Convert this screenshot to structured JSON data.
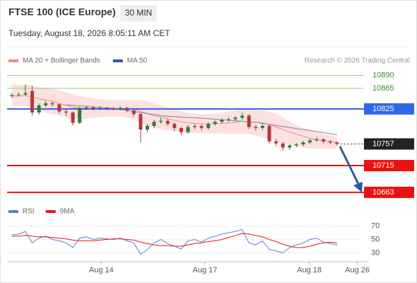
{
  "header": {
    "title": "FTSE 100 (ICE Europe)",
    "interval": "30 MIN",
    "datetime": "Tuesday, August 18, 2026 8:05:11 AM CET"
  },
  "chart_data": [
    {
      "type": "candlestick",
      "attribution": "Research © 2026 Trading Central",
      "xlim": [
        -0.5,
        52.5
      ],
      "ylim": [
        10645,
        10906
      ],
      "xticks": [
        {
          "value": 13.2,
          "label": "Aug 14"
        },
        {
          "value": 28.5,
          "label": "Aug 17"
        },
        {
          "value": 43.9,
          "label": "Aug 18"
        },
        {
          "value": 51,
          "label": "Aug 26"
        }
      ],
      "up_color": "#2f7d32",
      "down_color": "#b23a3a",
      "open": [
        10850,
        10852,
        10853,
        10860,
        10818,
        10832,
        10836,
        10834,
        10820,
        10818,
        10798,
        10826,
        10828,
        10826,
        10827,
        10826,
        10825,
        10827,
        10822,
        10815,
        10785,
        10792,
        10800,
        10802,
        10796,
        10788,
        10780,
        10790,
        10792,
        10788,
        10796,
        10800,
        10804,
        10805,
        10808,
        10812,
        10790,
        10788,
        10792,
        10762,
        10758,
        10750,
        10754,
        10756,
        10760,
        10764,
        10766,
        10762,
        10760
      ],
      "high": [
        10856,
        10857,
        10872,
        10870,
        10836,
        10840,
        10839,
        10836,
        10824,
        10820,
        10829,
        10831,
        10830,
        10830,
        10829,
        10829,
        10830,
        10829,
        10824,
        10817,
        10796,
        10804,
        10808,
        10805,
        10799,
        10790,
        10794,
        10796,
        10795,
        10799,
        10803,
        10807,
        10809,
        10811,
        10818,
        10815,
        10794,
        10797,
        10794,
        10766,
        10761,
        10757,
        10759,
        10763,
        10767,
        10770,
        10768,
        10765,
        10762
      ],
      "low": [
        10847,
        10849,
        10850,
        10812,
        10814,
        10829,
        10830,
        10816,
        10812,
        10793,
        10796,
        10823,
        10822,
        10823,
        10822,
        10822,
        10822,
        10818,
        10810,
        10760,
        10780,
        10788,
        10796,
        10792,
        10782,
        10774,
        10777,
        10786,
        10784,
        10785,
        10793,
        10797,
        10800,
        10801,
        10804,
        10786,
        10783,
        10784,
        10757,
        10752,
        10744,
        10746,
        10750,
        10752,
        10757,
        10761,
        10758,
        10756,
        10754
      ],
      "close": [
        10852,
        10853,
        10856,
        10818,
        10832,
        10836,
        10834,
        10820,
        10818,
        10798,
        10826,
        10828,
        10826,
        10827,
        10826,
        10825,
        10827,
        10822,
        10815,
        10785,
        10792,
        10800,
        10802,
        10796,
        10788,
        10780,
        10790,
        10792,
        10788,
        10796,
        10800,
        10804,
        10805,
        10808,
        10812,
        10790,
        10788,
        10792,
        10762,
        10758,
        10750,
        10754,
        10756,
        10760,
        10764,
        10766,
        10762,
        10760,
        10757
      ],
      "series": [
        {
          "name": "MA 20 + Bollinger Bands",
          "color": "#f08a8a",
          "band_color": "#fde0e0",
          "values": [
            10850,
            10850,
            10851,
            10848,
            10845,
            10842,
            10840,
            10836,
            10832,
            10828,
            10827,
            10826,
            10825,
            10825,
            10825,
            10825,
            10825,
            10825,
            10824,
            10820,
            10816,
            10812,
            10809,
            10806,
            10803,
            10800,
            10798,
            10797,
            10796,
            10796,
            10796,
            10797,
            10798,
            10799,
            10801,
            10800,
            10799,
            10798,
            10794,
            10790,
            10785,
            10780,
            10776,
            10772,
            10768,
            10765,
            10763,
            10761,
            10760
          ],
          "upper": [
            10872,
            10872,
            10873,
            10870,
            10868,
            10866,
            10864,
            10861,
            10858,
            10852,
            10850,
            10848,
            10846,
            10844,
            10843,
            10842,
            10842,
            10842,
            10842,
            10842,
            10840,
            10836,
            10832,
            10828,
            10824,
            10820,
            10818,
            10816,
            10815,
            10815,
            10816,
            10818,
            10820,
            10822,
            10825,
            10826,
            10824,
            10822,
            10820,
            10816,
            10808,
            10800,
            10794,
            10788,
            10784,
            10780,
            10776,
            10774,
            10772
          ],
          "lower": [
            10830,
            10830,
            10830,
            10826,
            10822,
            10818,
            10815,
            10812,
            10808,
            10804,
            10805,
            10806,
            10808,
            10809,
            10810,
            10810,
            10810,
            10808,
            10805,
            10798,
            10792,
            10788,
            10786,
            10784,
            10782,
            10780,
            10778,
            10778,
            10778,
            10778,
            10778,
            10777,
            10776,
            10776,
            10777,
            10775,
            10773,
            10770,
            10766,
            10762,
            10758,
            10755,
            10752,
            10750,
            10748,
            10748,
            10748,
            10748,
            10748
          ]
        },
        {
          "name": "MA 50",
          "color": "#2d5a9b",
          "line_color": "#7f86a8",
          "values": [
            null,
            null,
            null,
            null,
            null,
            null,
            null,
            null,
            10833,
            10832,
            10831,
            10830,
            10829,
            10828,
            10827,
            10826,
            10824,
            10822,
            10820,
            10818,
            10816,
            10814,
            10812,
            10811,
            10810,
            10809,
            10808,
            10808,
            10807,
            10806,
            10805,
            10804,
            10803,
            10802,
            10801,
            10800,
            10799,
            10797,
            10795,
            10793,
            10791,
            10789,
            10787,
            10785,
            10783,
            10781,
            10779,
            10777,
            10775
          ]
        }
      ],
      "levels": [
        {
          "value": 10890,
          "color": "#8fd07a",
          "style": "solid",
          "boxed": false,
          "text_color": "#3a8a2a"
        },
        {
          "value": 10865,
          "color": "#8fd07a",
          "style": "solid",
          "boxed": false,
          "text_color": "#3a8a2a"
        },
        {
          "value": 10825,
          "color": "#3366ee",
          "style": "solid",
          "boxed": true,
          "text_color": "#ffffff"
        },
        {
          "value": 10757,
          "color": "#222222",
          "style": "dotted",
          "boxed": true,
          "text_color": "#ffffff"
        },
        {
          "value": 10715,
          "color": "#ee1111",
          "style": "solid",
          "boxed": true,
          "text_color": "#ffffff"
        },
        {
          "value": 10663,
          "color": "#ee1111",
          "style": "solid",
          "boxed": true,
          "text_color": "#ffffff"
        }
      ]
    },
    {
      "type": "line",
      "ylim": [
        20,
        80
      ],
      "yticks": [
        30,
        50,
        70
      ],
      "grid": true,
      "series": [
        {
          "name": "RSI",
          "color": "#5b7fd6",
          "values": [
            57,
            58,
            62,
            45,
            52,
            55,
            50,
            48,
            45,
            38,
            52,
            54,
            50,
            52,
            51,
            50,
            52,
            48,
            45,
            28,
            35,
            45,
            50,
            44,
            40,
            36,
            48,
            50,
            46,
            52,
            55,
            58,
            60,
            62,
            65,
            45,
            42,
            48,
            35,
            33,
            30,
            38,
            42,
            45,
            50,
            52,
            46,
            44,
            42
          ]
        },
        {
          "name": "9MA",
          "color": "#e01818",
          "values": [
            55,
            55,
            56,
            55,
            54,
            54,
            53,
            52,
            51,
            49,
            48,
            48,
            48,
            49,
            50,
            51,
            51,
            50,
            49,
            46,
            44,
            42,
            41,
            41,
            40,
            40,
            42,
            44,
            45,
            47,
            48,
            50,
            53,
            56,
            59,
            58,
            56,
            54,
            50,
            47,
            43,
            40,
            38,
            38,
            40,
            43,
            45,
            46,
            45
          ]
        }
      ]
    }
  ]
}
